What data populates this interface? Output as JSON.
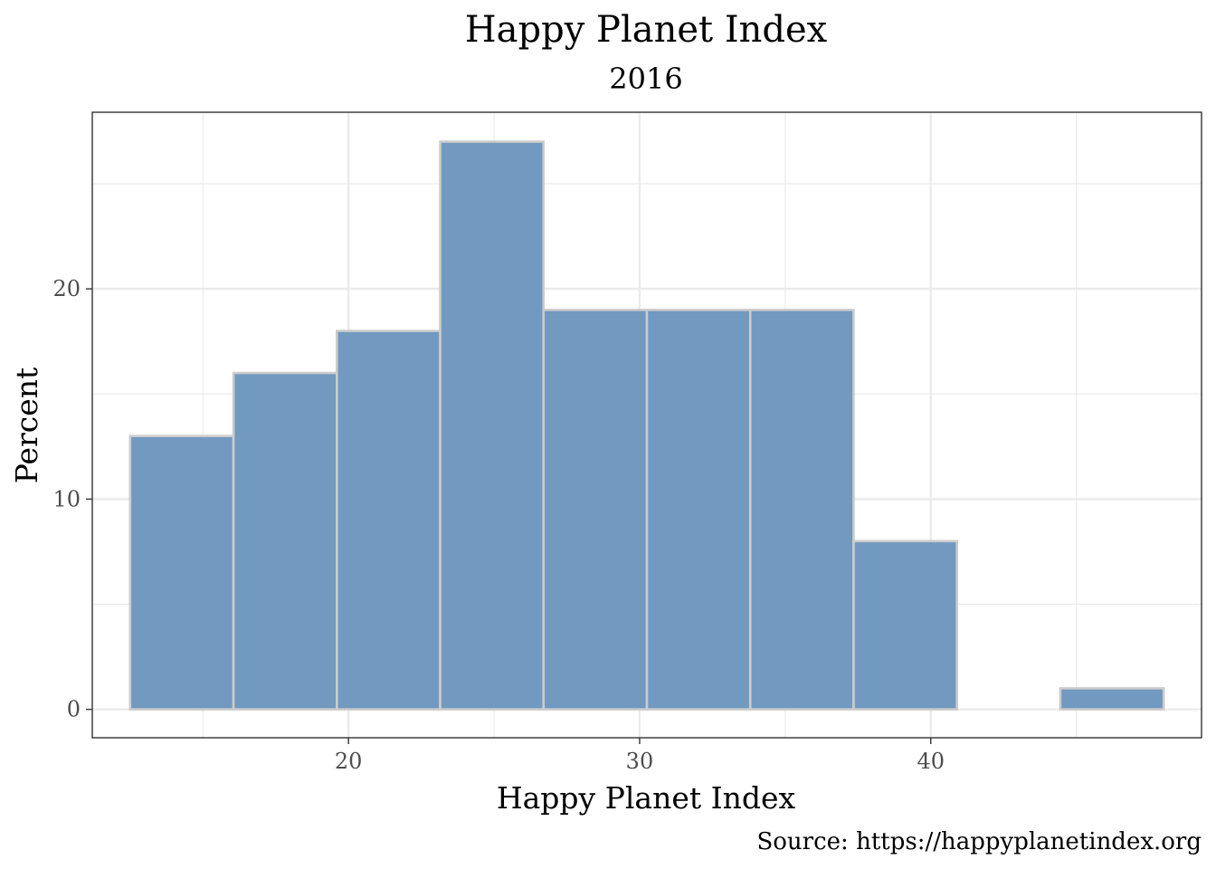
{
  "chart_data": {
    "type": "bar",
    "subtype": "histogram",
    "title": "Happy Planet Index",
    "subtitle": "2016",
    "xlabel": "Happy Planet Index",
    "ylabel": "Percent",
    "caption": "Source: https://happyplanetindex.org",
    "xlim": [
      11.2,
      49.3
    ],
    "ylim": [
      -1.35,
      28.4
    ],
    "x_ticks": [
      20,
      30,
      40
    ],
    "x_minor_ticks": [
      15,
      25,
      35,
      45
    ],
    "y_ticks": [
      0,
      10,
      20
    ],
    "y_minor_ticks": [
      5,
      15,
      25
    ],
    "bins": [
      {
        "start": 12.5,
        "end": 16.05,
        "value": 13
      },
      {
        "start": 16.05,
        "end": 19.6,
        "value": 16
      },
      {
        "start": 19.6,
        "end": 23.15,
        "value": 18
      },
      {
        "start": 23.15,
        "end": 26.7,
        "value": 27
      },
      {
        "start": 26.7,
        "end": 30.25,
        "value": 19
      },
      {
        "start": 30.25,
        "end": 33.8,
        "value": 19
      },
      {
        "start": 33.8,
        "end": 37.35,
        "value": 19
      },
      {
        "start": 37.35,
        "end": 40.9,
        "value": 8
      },
      {
        "start": 40.9,
        "end": 44.45,
        "value": 0
      },
      {
        "start": 44.45,
        "end": 48.0,
        "value": 1
      }
    ],
    "grid": true,
    "bar_fill": "#7299c0",
    "bar_edge": "#cccccc",
    "grid_color": "#ebebeb",
    "panel_border": "#333333"
  }
}
